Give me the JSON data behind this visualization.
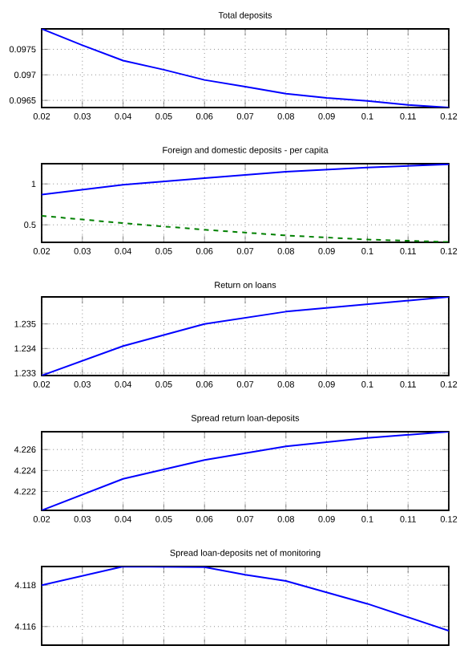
{
  "chart_data": [
    {
      "type": "line",
      "title": "Total deposits",
      "x": [
        0.02,
        0.03,
        0.04,
        0.05,
        0.06,
        0.07,
        0.08,
        0.09,
        0.1,
        0.11,
        0.12
      ],
      "grid": true,
      "xlim": [
        0.02,
        0.12
      ],
      "xticks": [
        0.02,
        0.03,
        0.04,
        0.05,
        0.06,
        0.07,
        0.08,
        0.09,
        0.1,
        0.11,
        0.12
      ],
      "ylim": [
        0.09636,
        0.0979
      ],
      "yticks": [
        0.0965,
        0.097,
        0.0975
      ],
      "series": [
        {
          "color": "#0000ff",
          "line_style": "solid",
          "values": [
            0.0979,
            0.09758,
            0.09728,
            0.0971,
            0.0969,
            0.09677,
            0.09663,
            0.09655,
            0.09649,
            0.09641,
            0.09636
          ]
        }
      ]
    },
    {
      "type": "line",
      "title": "Foreign and domestic deposits - per capita",
      "x": [
        0.02,
        0.04,
        0.06,
        0.08,
        0.1,
        0.12
      ],
      "grid": true,
      "xlim": [
        0.02,
        0.12
      ],
      "xticks": [
        0.02,
        0.03,
        0.04,
        0.05,
        0.06,
        0.07,
        0.08,
        0.09,
        0.1,
        0.11,
        0.12
      ],
      "ylim": [
        0.286,
        1.247
      ],
      "yticks": [
        0.5,
        1
      ],
      "series": [
        {
          "color": "#0000ff",
          "line_style": "solid",
          "values": [
            0.87,
            0.99,
            1.07,
            1.15,
            1.2,
            1.24
          ]
        },
        {
          "color": "#008000",
          "line_style": "dashed",
          "values": [
            0.61,
            0.52,
            0.44,
            0.37,
            0.32,
            0.29
          ]
        }
      ]
    },
    {
      "type": "line",
      "title": "Return on loans",
      "x": [
        0.02,
        0.04,
        0.06,
        0.08,
        0.1,
        0.12
      ],
      "grid": true,
      "xlim": [
        0.02,
        0.12
      ],
      "xticks": [
        0.02,
        0.03,
        0.04,
        0.05,
        0.06,
        0.07,
        0.08,
        0.09,
        0.1,
        0.11,
        0.12
      ],
      "ylim": [
        1.2329,
        1.2361
      ],
      "yticks": [
        1.233,
        1.234,
        1.235
      ],
      "series": [
        {
          "color": "#0000ff",
          "line_style": "solid",
          "values": [
            1.2329,
            1.2341,
            1.235,
            1.2355,
            1.2358,
            1.2361
          ]
        }
      ]
    },
    {
      "type": "line",
      "title": "Spread return loan-deposits",
      "x": [
        0.02,
        0.04,
        0.06,
        0.08,
        0.1,
        0.12
      ],
      "grid": true,
      "xlim": [
        0.02,
        0.12
      ],
      "xticks": [
        0.02,
        0.03,
        0.04,
        0.05,
        0.06,
        0.07,
        0.08,
        0.09,
        0.1,
        0.11,
        0.12
      ],
      "ylim": [
        4.2202,
        4.2277
      ],
      "yticks": [
        4.222,
        4.224,
        4.226
      ],
      "series": [
        {
          "color": "#0000ff",
          "line_style": "solid",
          "values": [
            4.2202,
            4.2232,
            4.225,
            4.2263,
            4.2271,
            4.2277
          ]
        }
      ]
    },
    {
      "type": "line",
      "title": "Spread loan-deposits net of monitoring",
      "x": [
        0.02,
        0.04,
        0.06,
        0.07,
        0.08,
        0.1,
        0.12
      ],
      "grid": true,
      "xlim": [
        0.02,
        0.12
      ],
      "xticks": [
        0.02,
        0.03,
        0.04,
        0.05,
        0.06,
        0.07,
        0.08,
        0.09,
        0.1,
        0.11,
        0.12
      ],
      "ylim": [
        4.1151,
        4.1189
      ],
      "yticks": [
        4.116,
        4.118
      ],
      "tick_labels": "y",
      "series": [
        {
          "color": "#0000ff",
          "line_style": "solid",
          "values": [
            4.118,
            4.1189,
            4.11887,
            4.1185,
            4.1182,
            4.1171,
            4.1158
          ]
        }
      ]
    }
  ]
}
